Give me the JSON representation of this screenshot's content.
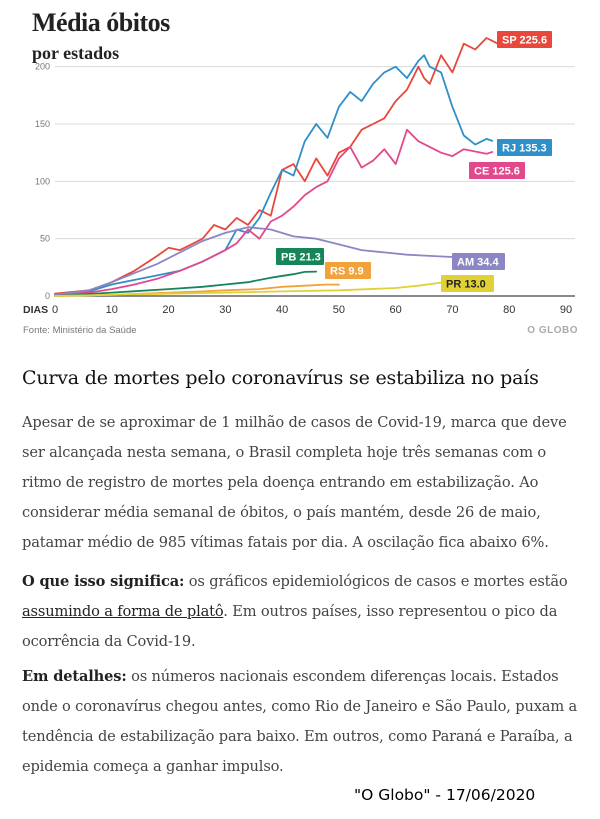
{
  "chart_data": {
    "type": "line",
    "title": "Média óbitos",
    "subtitle": "por estados",
    "xlabel": "DIAS",
    "xlim": [
      0,
      90
    ],
    "ylim": [
      0,
      225
    ],
    "x_ticks": [
      0,
      10,
      20,
      30,
      40,
      50,
      60,
      70,
      80,
      90
    ],
    "y_ticks": [
      0,
      50,
      100,
      150,
      200
    ],
    "source": "Fonte: Ministério da Saúde",
    "logo": "O GLOBO",
    "series": [
      {
        "name": "SP",
        "label": "SP 225.6",
        "end_value": 225.6,
        "color": "#e8473b",
        "x": [
          0,
          6,
          10,
          14,
          18,
          20,
          22,
          24,
          26,
          28,
          30,
          32,
          34,
          36,
          38,
          40,
          42,
          44,
          46,
          48,
          50,
          52,
          54,
          56,
          58,
          60,
          62,
          64,
          65,
          66,
          68,
          70,
          72,
          74,
          76,
          78,
          80,
          82,
          84,
          86,
          87
        ],
        "values": [
          2,
          5,
          12,
          22,
          35,
          42,
          40,
          45,
          50,
          62,
          58,
          68,
          62,
          75,
          70,
          110,
          115,
          100,
          120,
          105,
          125,
          130,
          145,
          150,
          155,
          170,
          180,
          200,
          190,
          185,
          210,
          195,
          220,
          215,
          225,
          220,
          226,
          218,
          228,
          220,
          225.6
        ]
      },
      {
        "name": "RJ",
        "label": "RJ 135.3",
        "end_value": 135.3,
        "color": "#2f8fc9",
        "x": [
          0,
          6,
          10,
          14,
          18,
          22,
          26,
          30,
          32,
          34,
          36,
          38,
          40,
          42,
          44,
          46,
          48,
          50,
          52,
          54,
          56,
          58,
          60,
          62,
          64,
          65,
          66,
          68,
          70,
          72,
          74,
          76,
          77
        ],
        "values": [
          1,
          4,
          10,
          14,
          18,
          22,
          30,
          40,
          58,
          55,
          68,
          90,
          110,
          105,
          135,
          150,
          138,
          165,
          178,
          170,
          185,
          195,
          200,
          190,
          205,
          210,
          200,
          195,
          165,
          140,
          132,
          137,
          135.3
        ]
      },
      {
        "name": "CE",
        "label": "CE 125.6",
        "end_value": 125.6,
        "color": "#e2498d",
        "x": [
          0,
          6,
          10,
          14,
          18,
          22,
          26,
          30,
          32,
          34,
          36,
          38,
          40,
          42,
          44,
          46,
          48,
          50,
          52,
          54,
          56,
          58,
          60,
          62,
          64,
          66,
          68,
          70,
          72,
          74,
          76,
          77
        ],
        "values": [
          1,
          3,
          6,
          10,
          15,
          22,
          30,
          40,
          46,
          58,
          50,
          65,
          70,
          78,
          88,
          95,
          100,
          120,
          130,
          112,
          118,
          128,
          115,
          145,
          135,
          130,
          125,
          122,
          128,
          126,
          124,
          125.6
        ]
      },
      {
        "name": "AM",
        "label": "AM 34.4",
        "end_value": 34.4,
        "color": "#8a87c4",
        "x": [
          0,
          6,
          10,
          14,
          18,
          22,
          26,
          30,
          34,
          38,
          42,
          46,
          50,
          54,
          58,
          62,
          66,
          70,
          74,
          76
        ],
        "values": [
          1,
          5,
          12,
          20,
          28,
          38,
          48,
          55,
          60,
          58,
          52,
          50,
          45,
          40,
          38,
          36,
          35,
          34,
          35,
          34.4
        ]
      },
      {
        "name": "PB",
        "label": "PB 21.3",
        "end_value": 21.3,
        "color": "#17855a",
        "x": [
          0,
          10,
          20,
          26,
          30,
          34,
          38,
          42,
          44,
          46
        ],
        "values": [
          0,
          3,
          6,
          8,
          10,
          12,
          16,
          19,
          21,
          21.3
        ]
      },
      {
        "name": "RS",
        "label": "RS 9.9",
        "end_value": 9.9,
        "color": "#f2a23b",
        "x": [
          0,
          10,
          20,
          26,
          30,
          36,
          40,
          44,
          48,
          50
        ],
        "values": [
          0,
          1,
          3,
          4,
          5,
          6,
          8,
          9,
          10,
          9.9
        ]
      },
      {
        "name": "PR",
        "label": "PR 13.0",
        "end_value": 13.0,
        "color": "#e0d236",
        "x": [
          0,
          10,
          20,
          30,
          40,
          50,
          60,
          64,
          67,
          70
        ],
        "values": [
          0,
          1,
          2,
          3,
          4,
          5,
          7,
          9,
          11,
          13.0
        ]
      }
    ]
  },
  "article": {
    "headline": "Curva de mortes pelo coronavírus se estabiliza no país",
    "intro": "Apesar de se aproximar de 1 milhão de casos de Covid-19, marca que deve ser alcançada nesta semana, o Brasil completa hoje três semanas com o ritmo de registro de mortes pela doença entrando em estabilização. Ao considerar média semanal de óbitos, o país mantém, desde 26 de maio, patamar médio de 985 vítimas fatais por dia. A oscilação fica abaixo 6%.",
    "meaning_label": "O que isso significa:",
    "meaning_text_before": " os gráficos epidemiológicos de casos e mortes estão ",
    "meaning_link": "assumindo a forma de platô",
    "meaning_text_after": ". Em outros países, isso representou o pico da ocorrência da Covid-19.",
    "details_label": "Em detalhes:",
    "details_text": " os números nacionais escondem diferenças locais. Estados onde o coronavírus chegou antes, como Rio de Janeiro e São Paulo, puxam a tendência de estabilização para baixo. Em outros, como Paraná e Paraíba, a epidemia começa a ganhar impulso."
  },
  "caption": "\"O Globo\" - 17/06/2020"
}
